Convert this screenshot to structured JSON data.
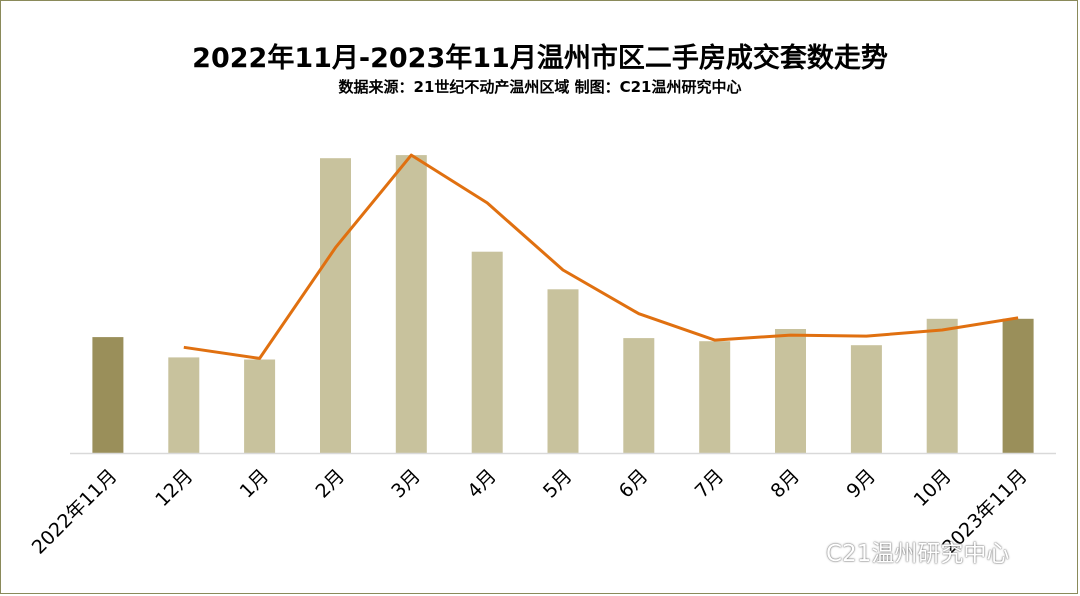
{
  "chart_data": {
    "type": "bar",
    "title": "2022年11月-2023年11月温州市区二手房成交套数走势",
    "subtitle": "数据来源：21世纪不动产温州区域  制图：C21温州研究中心",
    "categories": [
      "2022年11月",
      "12月",
      "1月",
      "2月",
      "3月",
      "4月",
      "5月",
      "6月",
      "7月",
      "8月",
      "9月",
      "10月",
      "2023年11月"
    ],
    "series": [
      {
        "kind": "bar",
        "values": [
          1140,
          940,
          920,
          2900,
          2930,
          1980,
          1610,
          1130,
          1100,
          1220,
          1060,
          1320,
          1320
        ],
        "highlight": [
          true,
          false,
          false,
          false,
          false,
          false,
          false,
          false,
          false,
          false,
          false,
          false,
          true
        ]
      },
      {
        "kind": "line",
        "values": [
          null,
          1040,
          930,
          2020,
          2930,
          2460,
          1800,
          1370,
          1110,
          1160,
          1150,
          1210,
          1330
        ]
      }
    ],
    "ylim": [
      0,
      3000
    ],
    "grid": false,
    "legend": "none",
    "xlabel": "",
    "ylabel": ""
  },
  "watermark": "C21温州研究中心",
  "colors": {
    "bar": "#c8c29d",
    "bar_highlight": "#9a8f5a",
    "line": "#e07010",
    "axis": "#d9d9d9"
  }
}
